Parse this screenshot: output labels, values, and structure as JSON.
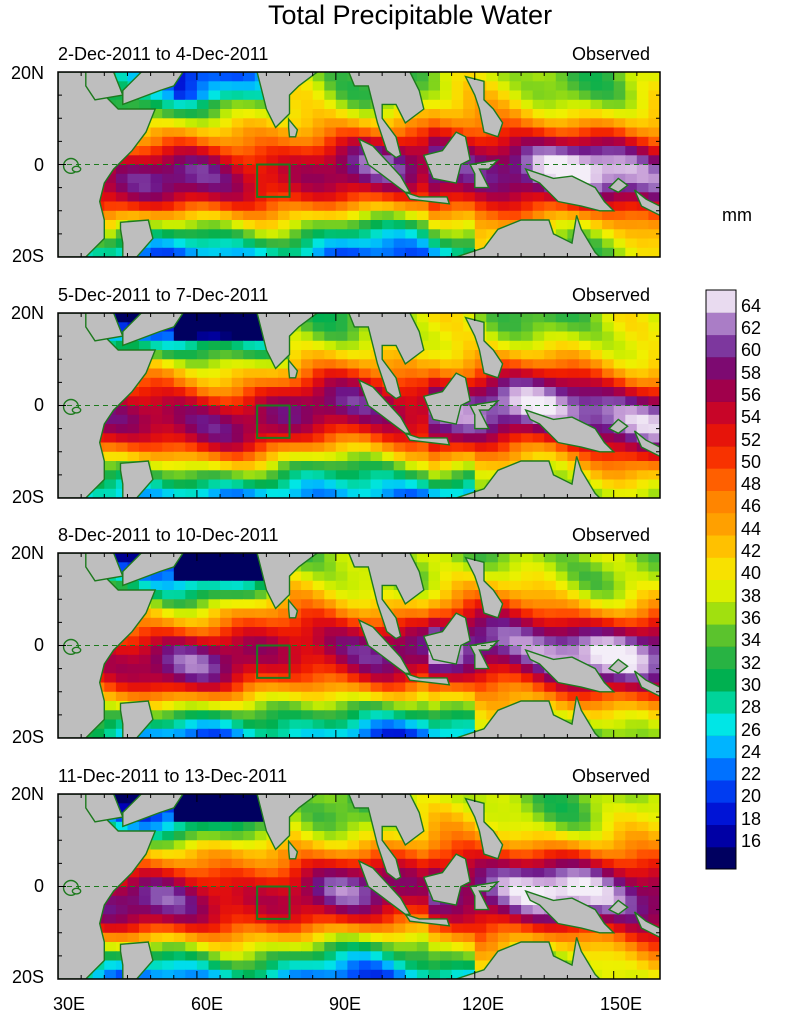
{
  "title": "Total Precipitable Water",
  "units": "mm",
  "panels": [
    {
      "date_range": "2-Dec-2011 to 4-Dec-2011",
      "label": "Observed"
    },
    {
      "date_range": "5-Dec-2011 to 7-Dec-2011",
      "label": "Observed"
    },
    {
      "date_range": "8-Dec-2011 to 10-Dec-2011",
      "label": "Observed"
    },
    {
      "date_range": "11-Dec-2011 to 13-Dec-2011",
      "label": "Observed"
    }
  ],
  "lat_labels": [
    "20N",
    "0",
    "20S"
  ],
  "lon_labels": [
    "30E",
    "60E",
    "90E",
    "120E",
    "150E"
  ],
  "colorbar_labels": [
    "64",
    "62",
    "60",
    "58",
    "56",
    "54",
    "52",
    "50",
    "48",
    "46",
    "44",
    "42",
    "40",
    "38",
    "36",
    "34",
    "32",
    "30",
    "28",
    "26",
    "24",
    "22",
    "20",
    "18",
    "16"
  ],
  "chart_data": {
    "type": "heatmap",
    "title": "Total Precipitable Water",
    "variable": "Total Precipitable Water",
    "units": "mm",
    "lon_range": [
      30,
      160
    ],
    "lat_range": [
      -20,
      20
    ],
    "color_scale_range": [
      15,
      65
    ],
    "colorbar_levels": [
      16,
      18,
      20,
      22,
      24,
      26,
      28,
      30,
      32,
      34,
      36,
      38,
      40,
      42,
      44,
      46,
      48,
      50,
      52,
      54,
      56,
      58,
      60,
      62,
      64
    ],
    "colors": {
      "land": "#bebebe",
      "coastline": "#1e7a1e",
      "box_outline": "#1e7a1e",
      "equator": "#1e7a1e",
      "low": "#000066",
      "high": "#ffffff"
    },
    "panels": [
      {
        "period": "2-Dec-2011 to 4-Dec-2011",
        "label": "Observed"
      },
      {
        "period": "5-Dec-2011 to 7-Dec-2011",
        "label": "Observed"
      },
      {
        "period": "8-Dec-2011 to 10-Dec-2011",
        "label": "Observed"
      },
      {
        "period": "11-Dec-2011 to 13-Dec-2011",
        "label": "Observed"
      }
    ]
  }
}
